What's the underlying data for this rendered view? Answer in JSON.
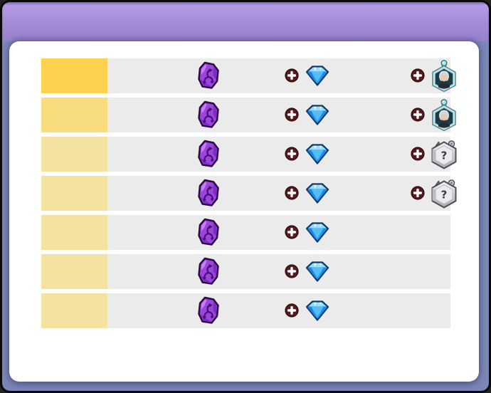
{
  "window": {
    "frame_color": "#0a0a0a",
    "backdrop_color": "#7b87b6",
    "card_color": "#ffffff",
    "header": {
      "gradient_top": "#b99ee8",
      "gradient_mid": "#a88ed9",
      "gradient_bottom": "#9781cc"
    }
  },
  "rewards_table": {
    "row_background": "#ebebeb",
    "plus_color": "#5a1b1b",
    "rune_color": "#9c44de",
    "gem_color": "#2d9df0",
    "mystery_mark": "?",
    "rows": [
      {
        "tier_color": "#fcd24e",
        "cost_item": "dark-rune",
        "rewards": [
          "blue-gem",
          "hero-portrait"
        ]
      },
      {
        "tier_color": "#f9dc7d",
        "cost_item": "dark-rune",
        "rewards": [
          "blue-gem",
          "hero-portrait"
        ]
      },
      {
        "tier_color": "#f4e2a1",
        "cost_item": "dark-rune",
        "rewards": [
          "blue-gem",
          "mystery-item"
        ]
      },
      {
        "tier_color": "#f4e2a1",
        "cost_item": "dark-rune",
        "rewards": [
          "blue-gem",
          "mystery-item"
        ]
      },
      {
        "tier_color": "#f4e2a1",
        "cost_item": "dark-rune",
        "rewards": [
          "blue-gem"
        ]
      },
      {
        "tier_color": "#f4e2a1",
        "cost_item": "dark-rune",
        "rewards": [
          "blue-gem"
        ]
      },
      {
        "tier_color": "#f4e2a1",
        "cost_item": "dark-rune",
        "rewards": [
          "blue-gem"
        ]
      }
    ]
  }
}
